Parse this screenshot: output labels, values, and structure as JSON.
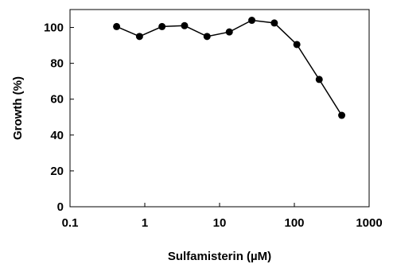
{
  "chart_data": {
    "type": "line",
    "title": "",
    "xlabel": "Sulfamisterin (µM)",
    "ylabel": "Growth (%)",
    "xscale": "log",
    "xlim": [
      0.1,
      1000
    ],
    "ylim": [
      0,
      110
    ],
    "grid": false,
    "legend": "none",
    "x_ticks": [
      0.1,
      1,
      10,
      100,
      1000
    ],
    "x_tick_labels": [
      "0.1",
      "1",
      "10",
      "100",
      "1000"
    ],
    "y_ticks": [
      0,
      20,
      40,
      60,
      80,
      100
    ],
    "y_tick_labels": [
      "0",
      "20",
      "40",
      "60",
      "80",
      "100"
    ],
    "series": [
      {
        "color": "#000000",
        "marker": "circle",
        "x": [
          0.42,
          0.85,
          1.7,
          3.4,
          6.8,
          13.5,
          27,
          54,
          108,
          215,
          430
        ],
        "y": [
          100.5,
          95,
          100.5,
          101,
          95,
          97.5,
          104,
          102.5,
          90.5,
          71,
          51
        ]
      }
    ]
  }
}
